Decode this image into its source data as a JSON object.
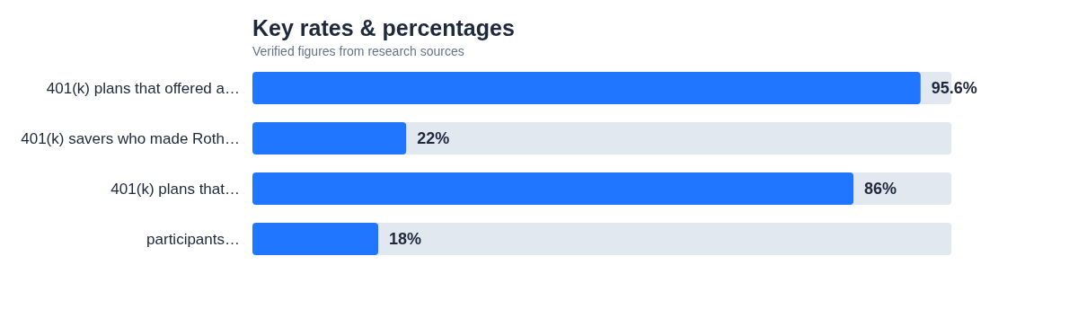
{
  "chart_data": {
    "type": "bar",
    "orientation": "horizontal",
    "title": "Key rates & percentages",
    "subtitle": "Verified figures from research sources",
    "categories": [
      "401(k) plans that offered a…",
      "401(k) savers who made Roth…",
      "401(k) plans that…",
      "participants…"
    ],
    "values": [
      95.6,
      22,
      86,
      18
    ],
    "value_labels": [
      "95.6%",
      "22%",
      "86%",
      "18%"
    ],
    "color": "#2176ff",
    "xlim": [
      0,
      100
    ],
    "tick_labels": false,
    "grid": false
  }
}
